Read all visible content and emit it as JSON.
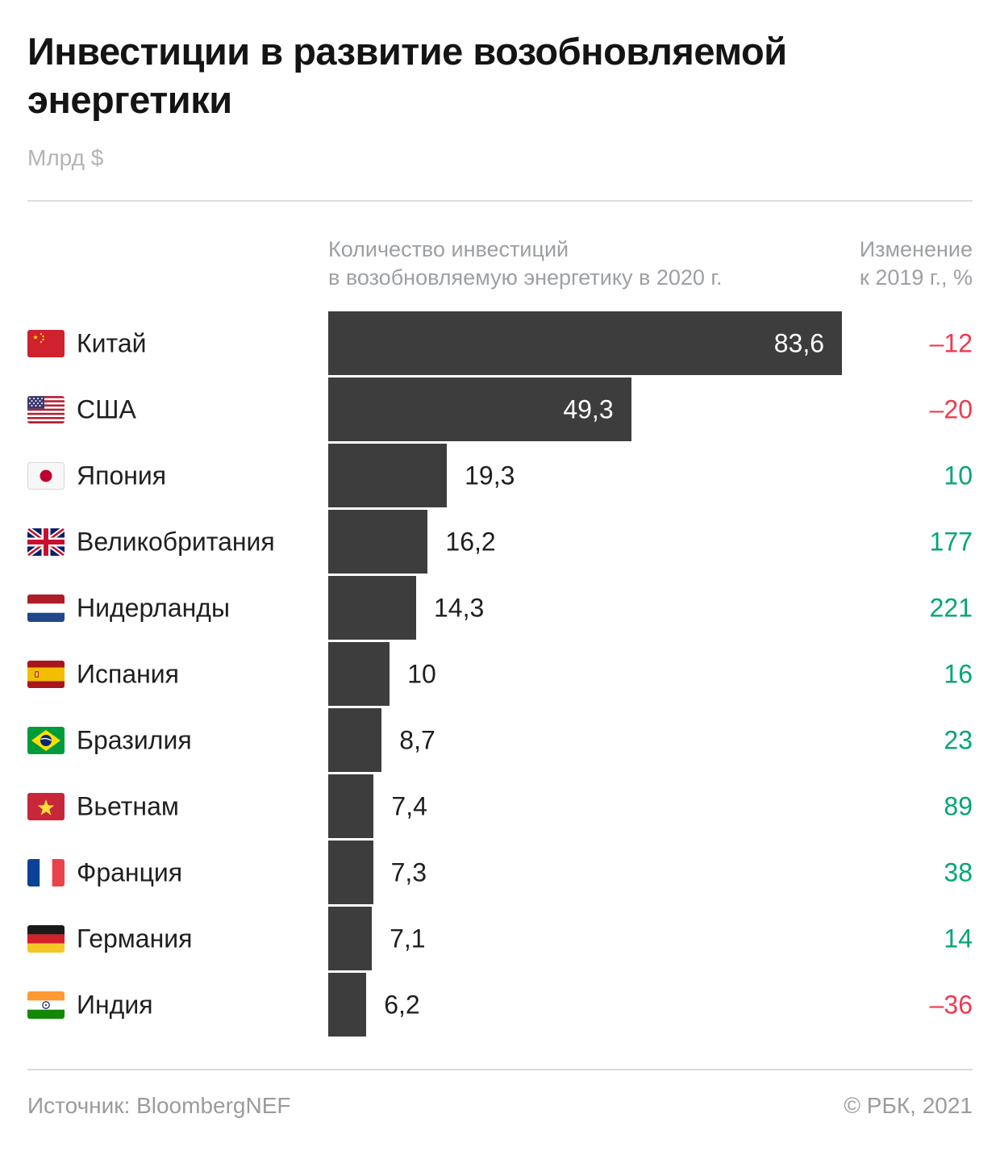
{
  "title": "Инвестиции в развитие возобновляемой энергетики",
  "subtitle": "Млрд $",
  "columns": {
    "bar_header_line1": "Количество инвестиций",
    "bar_header_line2": "в возобновляемую энергетику в 2020 г.",
    "change_header_line1": "Изменение",
    "change_header_line2": "к 2019 г., %"
  },
  "chart_data": {
    "type": "bar",
    "orientation": "horizontal",
    "title": "Инвестиции в развитие возобновляемой энергетики",
    "unit": "млрд $",
    "categories": [
      "Китай",
      "США",
      "Япония",
      "Великобритания",
      "Нидерланды",
      "Испания",
      "Бразилия",
      "Вьетнам",
      "Франция",
      "Германия",
      "Индия"
    ],
    "series": [
      {
        "name": "Количество инвестиций в возобновляемую энергетику в 2020 г., млрд $",
        "values": [
          83.6,
          49.3,
          19.3,
          16.2,
          14.3,
          10,
          8.7,
          7.4,
          7.3,
          7.1,
          6.2
        ]
      },
      {
        "name": "Изменение к 2019 г., %",
        "values": [
          -12,
          -20,
          10,
          177,
          221,
          16,
          23,
          89,
          38,
          14,
          -36
        ]
      }
    ],
    "xlim": [
      0,
      83.6
    ],
    "grid": false,
    "legend_position": "none"
  },
  "rows": [
    {
      "country": "Китай",
      "flag_icon": "china-flag-icon",
      "value": 83.6,
      "value_label": "83,6",
      "change": -12,
      "change_label": "–12"
    },
    {
      "country": "США",
      "flag_icon": "usa-flag-icon",
      "value": 49.3,
      "value_label": "49,3",
      "change": -20,
      "change_label": "–20"
    },
    {
      "country": "Япония",
      "flag_icon": "japan-flag-icon",
      "value": 19.3,
      "value_label": "19,3",
      "change": 10,
      "change_label": "10"
    },
    {
      "country": "Великобритания",
      "flag_icon": "uk-flag-icon",
      "value": 16.2,
      "value_label": "16,2",
      "change": 177,
      "change_label": "177"
    },
    {
      "country": "Нидерланды",
      "flag_icon": "netherlands-flag-icon",
      "value": 14.3,
      "value_label": "14,3",
      "change": 221,
      "change_label": "221"
    },
    {
      "country": "Испания",
      "flag_icon": "spain-flag-icon",
      "value": 10,
      "value_label": "10",
      "change": 16,
      "change_label": "16"
    },
    {
      "country": "Бразилия",
      "flag_icon": "brazil-flag-icon",
      "value": 8.7,
      "value_label": "8,7",
      "change": 23,
      "change_label": "23"
    },
    {
      "country": "Вьетнам",
      "flag_icon": "vietnam-flag-icon",
      "value": 7.4,
      "value_label": "7,4",
      "change": 89,
      "change_label": "89"
    },
    {
      "country": "Франция",
      "flag_icon": "france-flag-icon",
      "value": 7.3,
      "value_label": "7,3",
      "change": 38,
      "change_label": "38"
    },
    {
      "country": "Германия",
      "flag_icon": "germany-flag-icon",
      "value": 7.1,
      "value_label": "7,1",
      "change": 14,
      "change_label": "14"
    },
    {
      "country": "Индия",
      "flag_icon": "india-flag-icon",
      "value": 6.2,
      "value_label": "6,2",
      "change": -36,
      "change_label": "–36"
    }
  ],
  "footer": {
    "source": "Источник: BloombergNEF",
    "copyright": "© РБК, 2021"
  },
  "colors": {
    "bar": "#3d3d3d",
    "positive": "#00a578",
    "negative": "#ef3a4f",
    "muted": "#9da0a3",
    "text": "#1f1f1f",
    "divider": "#dcdcdc"
  }
}
